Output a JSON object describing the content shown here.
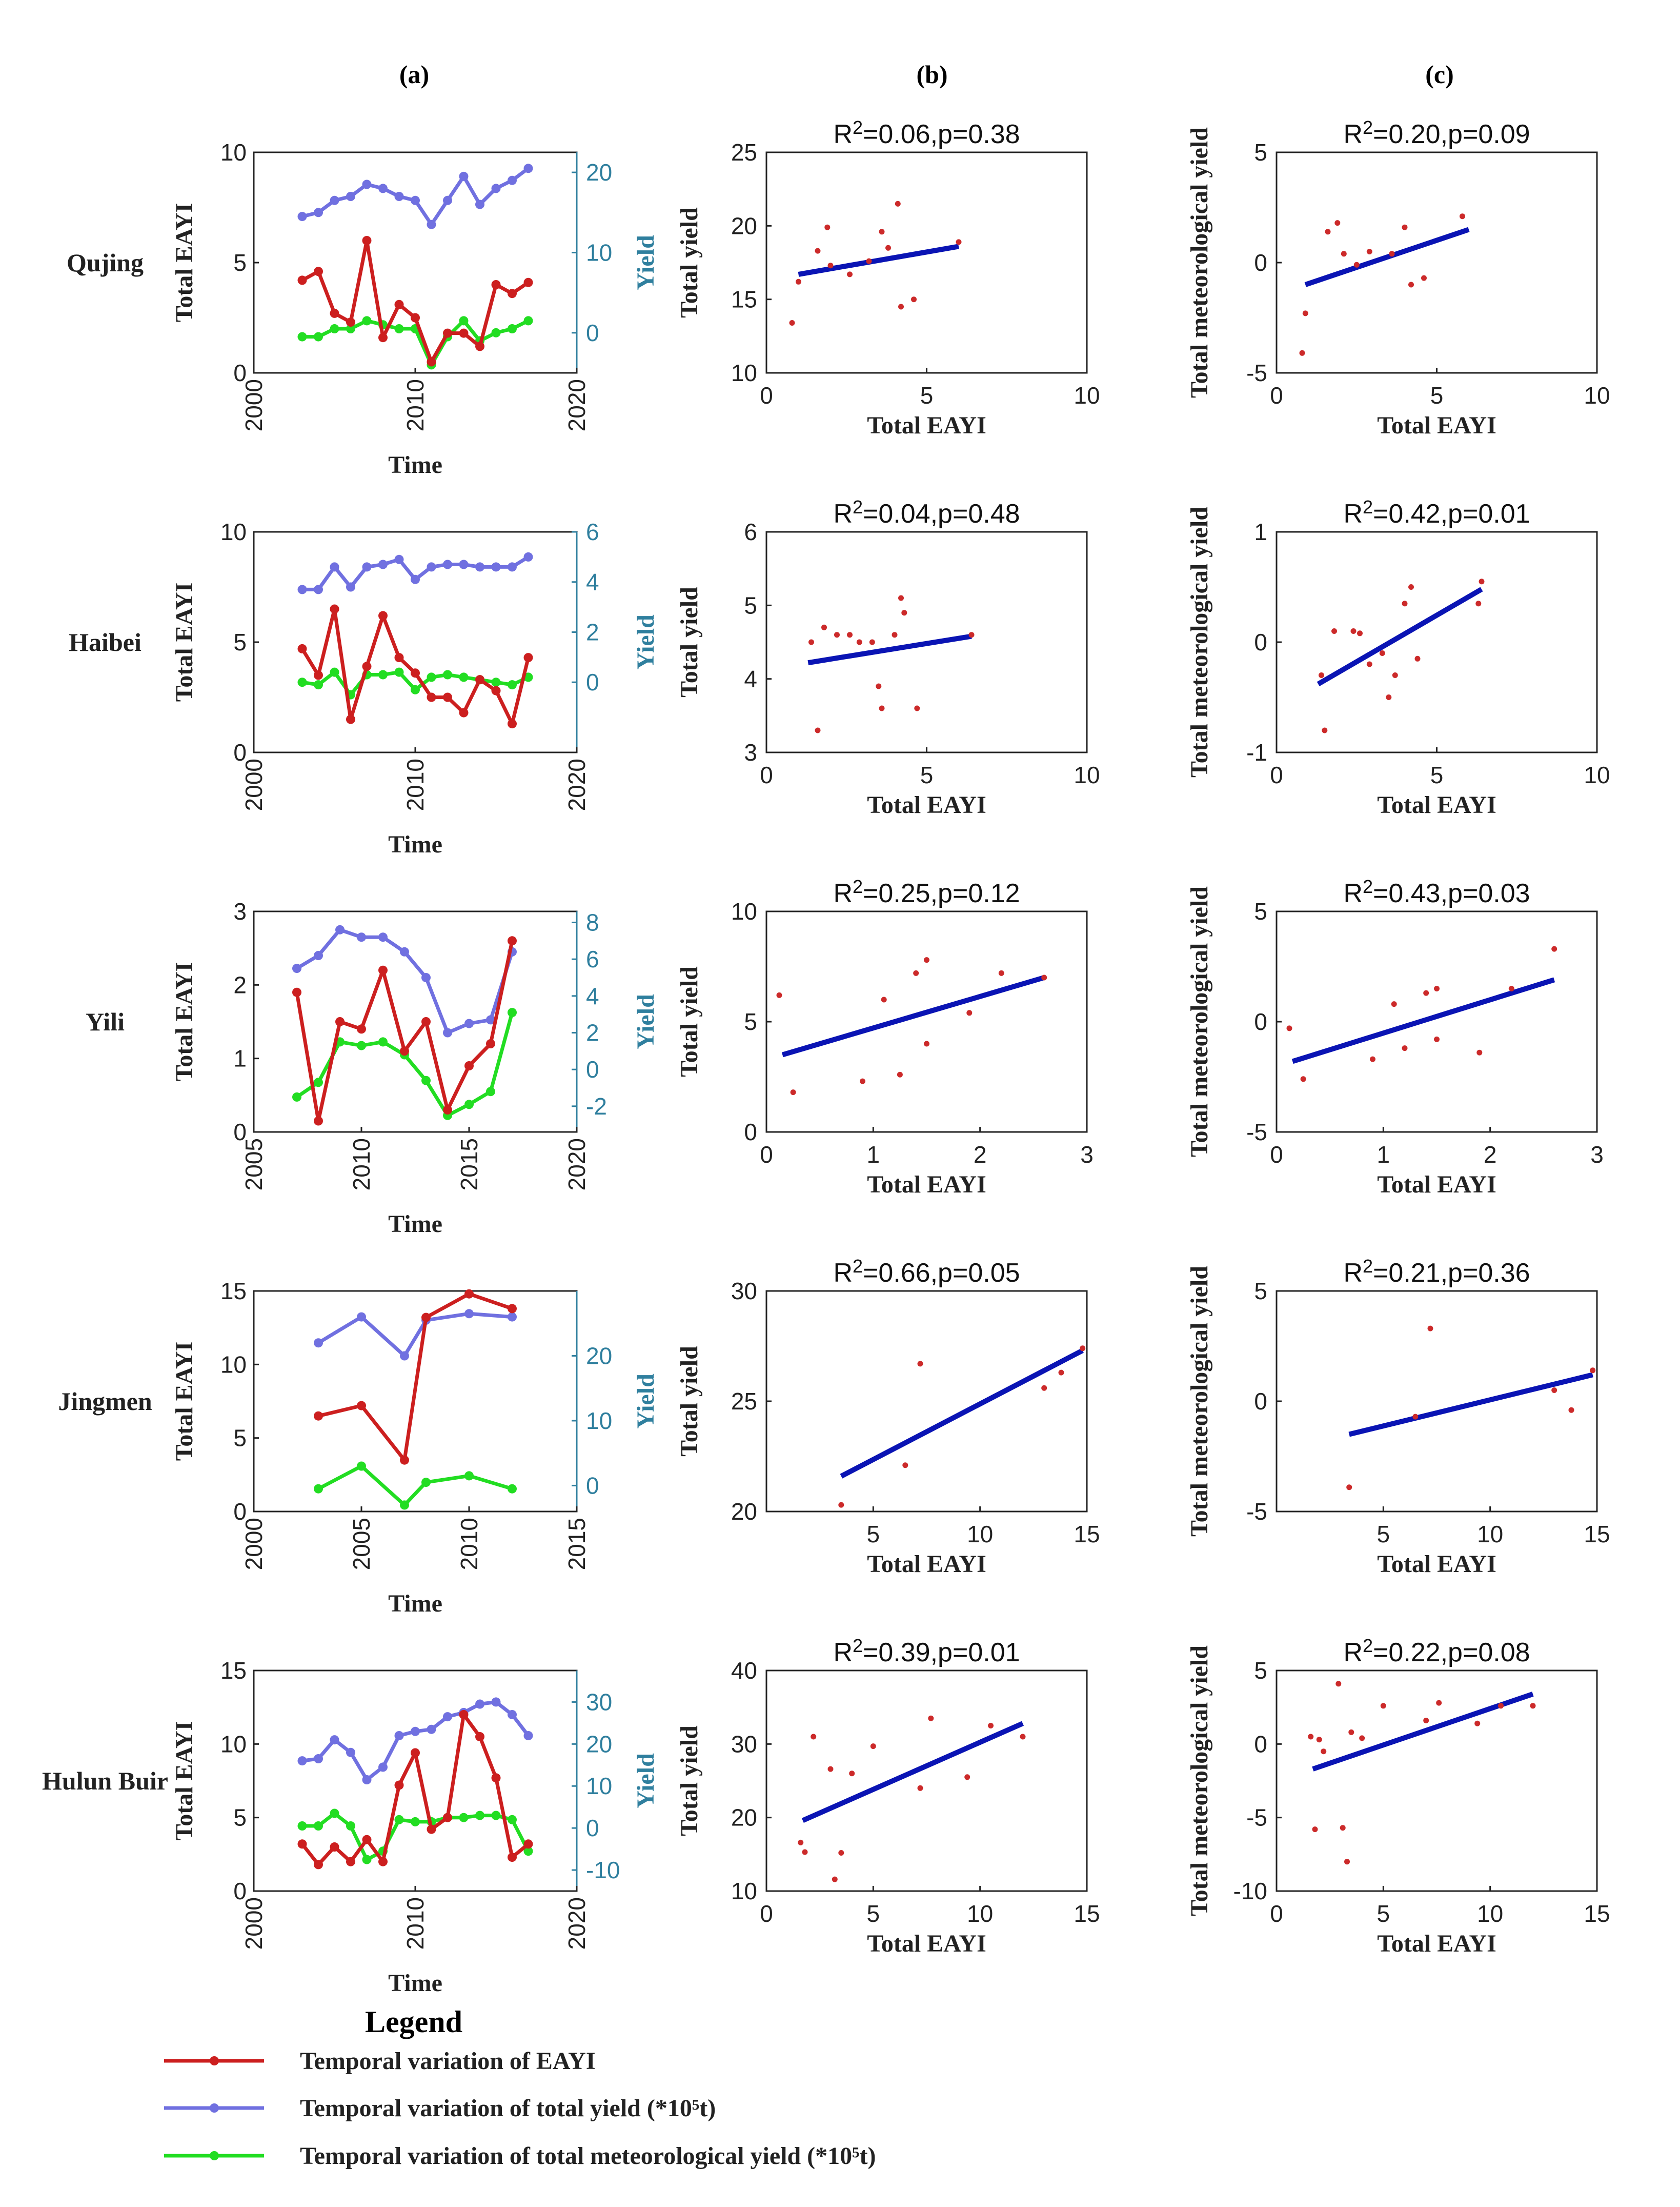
{
  "colors": {
    "eayi": "#cc1f1f",
    "total_yield": "#7070e0",
    "met_yield": "#22dd22",
    "fit": "#0a14b4",
    "scatter": "#cc2a2a",
    "yield_axis": "#2f7f9e",
    "axis": "#222222"
  },
  "column_headers": [
    "(a)",
    "(b)",
    "(c)"
  ],
  "labels": {
    "time": "Time",
    "total_eayi": "Total EAYI",
    "yield": "Yield",
    "total_yield": "Total yield",
    "total_met_yield": "Total meteorological yield"
  },
  "legend": {
    "title": "Legend",
    "items": [
      {
        "key": "eayi",
        "label": "Temporal variation of EAYI"
      },
      {
        "key": "total_yield",
        "label": "Temporal variation of total yield (*10⁵t)"
      },
      {
        "key": "met_yield",
        "label": "Temporal variation of total meteorological yield (*10⁵t)"
      }
    ]
  },
  "chart_data": [
    {
      "region": "Qujing",
      "time_series": {
        "type": "line",
        "xlim": [
          2000,
          2020
        ],
        "xticks": [
          2000,
          2010,
          2020
        ],
        "ylim_left": [
          0,
          10
        ],
        "yticks_left": [
          0,
          5,
          10
        ],
        "ylim_right": [
          -5,
          22.5
        ],
        "yticks_right": [
          0,
          10,
          20
        ],
        "years": [
          2003,
          2004,
          2005,
          2006,
          2007,
          2008,
          2009,
          2010,
          2011,
          2012,
          2013,
          2014,
          2015,
          2016,
          2017
        ],
        "eayi": [
          4.2,
          4.6,
          2.7,
          2.3,
          6.0,
          1.6,
          3.1,
          2.5,
          0.5,
          1.8,
          1.8,
          1.2,
          4.0,
          3.6,
          4.1
        ],
        "total_yield": [
          14.5,
          15,
          16.5,
          17,
          18.5,
          18,
          17,
          16.5,
          13.5,
          16.5,
          19.5,
          16,
          18,
          19,
          20.5
        ],
        "met_yield": [
          -0.5,
          -0.5,
          0.5,
          0.5,
          1.5,
          1,
          0.5,
          0.5,
          -4,
          -0.5,
          1.5,
          -1,
          0,
          0.5,
          1.5
        ]
      },
      "scatter_total": {
        "type": "scatter",
        "title": "R²=0.06,p=0.38",
        "xlim": [
          0,
          10
        ],
        "ylim": [
          10,
          25
        ],
        "xticks": [
          0,
          5,
          10
        ],
        "yticks": [
          10,
          15,
          20,
          25
        ],
        "x": [
          0.8,
          1.0,
          1.6,
          1.9,
          2.0,
          2.6,
          3.2,
          3.6,
          3.8,
          4.1,
          4.2,
          4.6,
          6.0
        ],
        "y": [
          13.4,
          16.2,
          18.3,
          19.9,
          17.3,
          16.7,
          17.6,
          19.6,
          18.5,
          21.5,
          14.5,
          15.0,
          18.9
        ],
        "fit": [
          [
            1.0,
            16.7
          ],
          [
            6.0,
            18.6
          ]
        ]
      },
      "scatter_met": {
        "type": "scatter",
        "title": "R²=0.20,p=0.09",
        "xlim": [
          0,
          10
        ],
        "ylim": [
          -5,
          5
        ],
        "xticks": [
          0,
          5,
          10
        ],
        "yticks": [
          -5,
          0,
          5
        ],
        "x": [
          0.8,
          0.9,
          1.6,
          1.9,
          2.1,
          2.5,
          2.9,
          3.6,
          4.0,
          4.2,
          4.6,
          5.8
        ],
        "y": [
          -4.1,
          -2.3,
          1.4,
          1.8,
          0.4,
          -0.1,
          0.5,
          0.4,
          1.6,
          -1.0,
          -0.7,
          2.1
        ],
        "fit": [
          [
            0.9,
            -1.0
          ],
          [
            6.0,
            1.5
          ]
        ]
      }
    },
    {
      "region": "Haibei",
      "time_series": {
        "type": "line",
        "xlim": [
          2000,
          2020
        ],
        "xticks": [
          2000,
          2010,
          2020
        ],
        "ylim_left": [
          0,
          10
        ],
        "yticks_left": [
          0,
          5,
          10
        ],
        "ylim_right": [
          -2.8,
          6
        ],
        "yticks_right": [
          0,
          2,
          4,
          6
        ],
        "years": [
          2003,
          2004,
          2005,
          2006,
          2007,
          2008,
          2009,
          2010,
          2011,
          2012,
          2013,
          2014,
          2015,
          2016,
          2017
        ],
        "eayi": [
          4.7,
          3.5,
          6.5,
          1.5,
          3.9,
          6.2,
          4.3,
          3.6,
          2.5,
          2.5,
          1.8,
          3.3,
          2.8,
          1.3,
          4.3
        ],
        "total_yield": [
          3.7,
          3.7,
          4.6,
          3.8,
          4.6,
          4.7,
          4.9,
          4.1,
          4.6,
          4.7,
          4.7,
          4.6,
          4.6,
          4.6,
          5.0
        ],
        "met_yield": [
          0,
          -0.1,
          0.4,
          -0.5,
          0.3,
          0.3,
          0.4,
          -0.3,
          0.2,
          0.3,
          0.2,
          0.1,
          0,
          -0.1,
          0.2
        ]
      },
      "scatter_total": {
        "type": "scatter",
        "title": "R²=0.04,p=0.48",
        "xlim": [
          0,
          10
        ],
        "ylim": [
          3,
          6
        ],
        "xticks": [
          0,
          5,
          10
        ],
        "yticks": [
          3,
          4,
          5,
          6
        ],
        "x": [
          1.4,
          1.6,
          1.8,
          2.2,
          2.6,
          2.9,
          3.3,
          3.5,
          3.6,
          4.0,
          4.2,
          4.3,
          4.7,
          6.4
        ],
        "y": [
          4.5,
          3.3,
          4.7,
          4.6,
          4.6,
          4.5,
          4.5,
          3.9,
          3.6,
          4.6,
          5.1,
          4.9,
          3.6,
          4.6
        ],
        "fit": [
          [
            1.3,
            4.22
          ],
          [
            6.4,
            4.58
          ]
        ]
      },
      "scatter_met": {
        "type": "scatter",
        "title": "R²=0.42,p=0.01",
        "xlim": [
          0,
          10
        ],
        "ylim": [
          -1,
          1
        ],
        "xticks": [
          0,
          5,
          10
        ],
        "yticks": [
          -1,
          0,
          1
        ],
        "x": [
          1.4,
          1.5,
          1.8,
          2.4,
          2.6,
          2.9,
          3.3,
          3.5,
          3.7,
          4.0,
          4.2,
          4.4,
          6.3,
          6.4
        ],
        "y": [
          -0.3,
          -0.8,
          0.1,
          0.1,
          0.08,
          -0.2,
          -0.1,
          -0.5,
          -0.3,
          0.35,
          0.5,
          -0.15,
          0.35,
          0.55
        ],
        "fit": [
          [
            1.3,
            -0.38
          ],
          [
            6.4,
            0.48
          ]
        ]
      }
    },
    {
      "region": "Yili",
      "time_series": {
        "type": "line",
        "xlim": [
          2005,
          2020
        ],
        "xticks": [
          2005,
          2010,
          2015,
          2020
        ],
        "ylim_left": [
          0,
          3
        ],
        "yticks_left": [
          0,
          1,
          2,
          3
        ],
        "ylim_right": [
          -3.4,
          8.6
        ],
        "yticks_right": [
          -2,
          0,
          2,
          4,
          6,
          8
        ],
        "years": [
          2007,
          2008,
          2009,
          2010,
          2011,
          2012,
          2013,
          2014,
          2015,
          2016,
          2017
        ],
        "eayi": [
          1.9,
          0.15,
          1.5,
          1.4,
          2.2,
          1.1,
          1.5,
          0.3,
          0.9,
          1.2,
          2.6
        ],
        "total_yield": [
          5.5,
          6.2,
          7.6,
          7.2,
          7.2,
          6.4,
          5.0,
          2.0,
          2.5,
          2.7,
          6.4
        ],
        "met_yield": [
          -1.5,
          -0.7,
          1.5,
          1.3,
          1.5,
          0.8,
          -0.6,
          -2.5,
          -1.9,
          -1.2,
          3.1
        ]
      },
      "scatter_total": {
        "type": "scatter",
        "title": "R²=0.25,p=0.12",
        "xlim": [
          0,
          3
        ],
        "ylim": [
          0,
          10
        ],
        "xticks": [
          0,
          1,
          2,
          3
        ],
        "yticks": [
          0,
          5,
          10
        ],
        "x": [
          0.12,
          0.25,
          0.9,
          1.1,
          1.25,
          1.4,
          1.5,
          1.5,
          1.9,
          2.2,
          2.6
        ],
        "y": [
          6.2,
          1.8,
          2.3,
          6.0,
          2.6,
          7.2,
          7.8,
          4.0,
          5.4,
          7.2,
          7.0
        ],
        "fit": [
          [
            0.15,
            3.5
          ],
          [
            2.6,
            7.0
          ]
        ]
      },
      "scatter_met": {
        "type": "scatter",
        "title": "R²=0.43,p=0.03",
        "xlim": [
          0,
          3
        ],
        "ylim": [
          -5,
          5
        ],
        "xticks": [
          0,
          1,
          2,
          3
        ],
        "yticks": [
          -5,
          0,
          5
        ],
        "x": [
          0.12,
          0.25,
          0.9,
          1.1,
          1.2,
          1.4,
          1.5,
          1.5,
          1.9,
          2.2,
          2.6
        ],
        "y": [
          -0.3,
          -2.6,
          -1.7,
          0.8,
          -1.2,
          1.3,
          1.5,
          -0.8,
          -1.4,
          1.5,
          3.3
        ],
        "fit": [
          [
            0.15,
            -1.8
          ],
          [
            2.6,
            1.9
          ]
        ]
      }
    },
    {
      "region": "Jingmen",
      "time_series": {
        "type": "line",
        "xlim": [
          2000,
          2015
        ],
        "xticks": [
          2000,
          2005,
          2010,
          2015
        ],
        "ylim_left": [
          0,
          15
        ],
        "yticks_left": [
          0,
          5,
          10,
          15
        ],
        "ylim_right": [
          -4,
          30
        ],
        "yticks_right": [
          0,
          10,
          20
        ],
        "years": [
          2003,
          2005,
          2007,
          2008,
          2010,
          2012
        ],
        "eayi": [
          6.5,
          7.2,
          3.5,
          13.2,
          14.8,
          13.8
        ],
        "total_yield": [
          22,
          26,
          20,
          25.5,
          26.5,
          26
        ],
        "met_yield": [
          -0.5,
          3,
          -3,
          0.5,
          1.5,
          -0.5
        ]
      },
      "scatter_total": {
        "type": "scatter",
        "title": "R²=0.66,p=0.05",
        "xlim": [
          0,
          15
        ],
        "ylim": [
          20,
          30
        ],
        "xticks": [
          5,
          10,
          15
        ],
        "yticks": [
          20,
          25,
          30
        ],
        "x": [
          3.5,
          6.5,
          7.2,
          13.0,
          13.8,
          14.8
        ],
        "y": [
          20.3,
          22.1,
          26.7,
          25.6,
          26.3,
          27.4
        ],
        "fit": [
          [
            3.5,
            21.6
          ],
          [
            14.8,
            27.3
          ]
        ]
      },
      "scatter_met": {
        "type": "scatter",
        "title": "R²=0.21,p=0.36",
        "xlim": [
          0,
          15
        ],
        "ylim": [
          -5,
          5
        ],
        "xticks": [
          5,
          10,
          15
        ],
        "yticks": [
          -5,
          0,
          5
        ],
        "x": [
          3.4,
          6.5,
          7.2,
          13.0,
          13.8,
          14.8
        ],
        "y": [
          -3.9,
          -0.7,
          3.3,
          0.5,
          -0.4,
          1.4
        ],
        "fit": [
          [
            3.4,
            -1.5
          ],
          [
            14.8,
            1.2
          ]
        ]
      }
    },
    {
      "region": "Hulun Buir",
      "time_series": {
        "type": "line",
        "xlim": [
          2000,
          2020
        ],
        "xticks": [
          2000,
          2010,
          2020
        ],
        "ylim_left": [
          0,
          15
        ],
        "yticks_left": [
          0,
          5,
          10,
          15
        ],
        "ylim_right": [
          -15,
          37.5
        ],
        "yticks_right": [
          -10,
          0,
          10,
          20,
          30
        ],
        "years": [
          2003,
          2004,
          2005,
          2006,
          2007,
          2008,
          2009,
          2010,
          2011,
          2012,
          2013,
          2014,
          2015,
          2016,
          2017
        ],
        "eayi": [
          3.2,
          1.8,
          3.0,
          2.0,
          3.5,
          2.0,
          7.2,
          9.4,
          4.2,
          5.0,
          12.0,
          10.5,
          7.7,
          2.3,
          3.2
        ],
        "total_yield": [
          16,
          16.5,
          21,
          18,
          11.5,
          14.5,
          22,
          23,
          23.5,
          26.5,
          27.5,
          29.5,
          30,
          27,
          22
        ],
        "met_yield": [
          0.5,
          0.5,
          3.5,
          0.5,
          -7.5,
          -5.5,
          2,
          1.5,
          1.5,
          2.5,
          2.5,
          3,
          3,
          2,
          -5.5
        ]
      },
      "scatter_total": {
        "type": "scatter",
        "title": "R²=0.39,p=0.01",
        "xlim": [
          0,
          15
        ],
        "ylim": [
          10,
          40
        ],
        "xticks": [
          0,
          5,
          10,
          15
        ],
        "yticks": [
          10,
          20,
          30,
          40
        ],
        "x": [
          1.6,
          1.8,
          2.2,
          3.0,
          3.2,
          3.5,
          4.0,
          5.0,
          7.2,
          7.7,
          9.4,
          10.5,
          12.0
        ],
        "y": [
          16.6,
          15.3,
          31.0,
          26.6,
          11.6,
          15.2,
          26.0,
          29.7,
          24.0,
          33.5,
          25.5,
          32.5,
          31.0
        ],
        "fit": [
          [
            1.7,
            19.6
          ],
          [
            12.0,
            32.8
          ]
        ]
      },
      "scatter_met": {
        "type": "scatter",
        "title": "R²=0.22,p=0.08",
        "xlim": [
          0,
          15
        ],
        "ylim": [
          -10,
          5
        ],
        "xticks": [
          0,
          5,
          10,
          15
        ],
        "yticks": [
          -10,
          -5,
          0,
          5
        ],
        "x": [
          1.6,
          1.8,
          2.0,
          2.2,
          2.9,
          3.1,
          3.3,
          3.5,
          4.0,
          5.0,
          7.0,
          7.6,
          9.4,
          10.5,
          12.0
        ],
        "y": [
          0.5,
          -5.8,
          0.3,
          -0.5,
          4.1,
          -5.7,
          -8.0,
          0.8,
          0.4,
          2.6,
          1.6,
          2.8,
          1.4,
          2.6,
          2.6
        ],
        "fit": [
          [
            1.7,
            -1.7
          ],
          [
            12.0,
            3.4
          ]
        ]
      }
    }
  ]
}
